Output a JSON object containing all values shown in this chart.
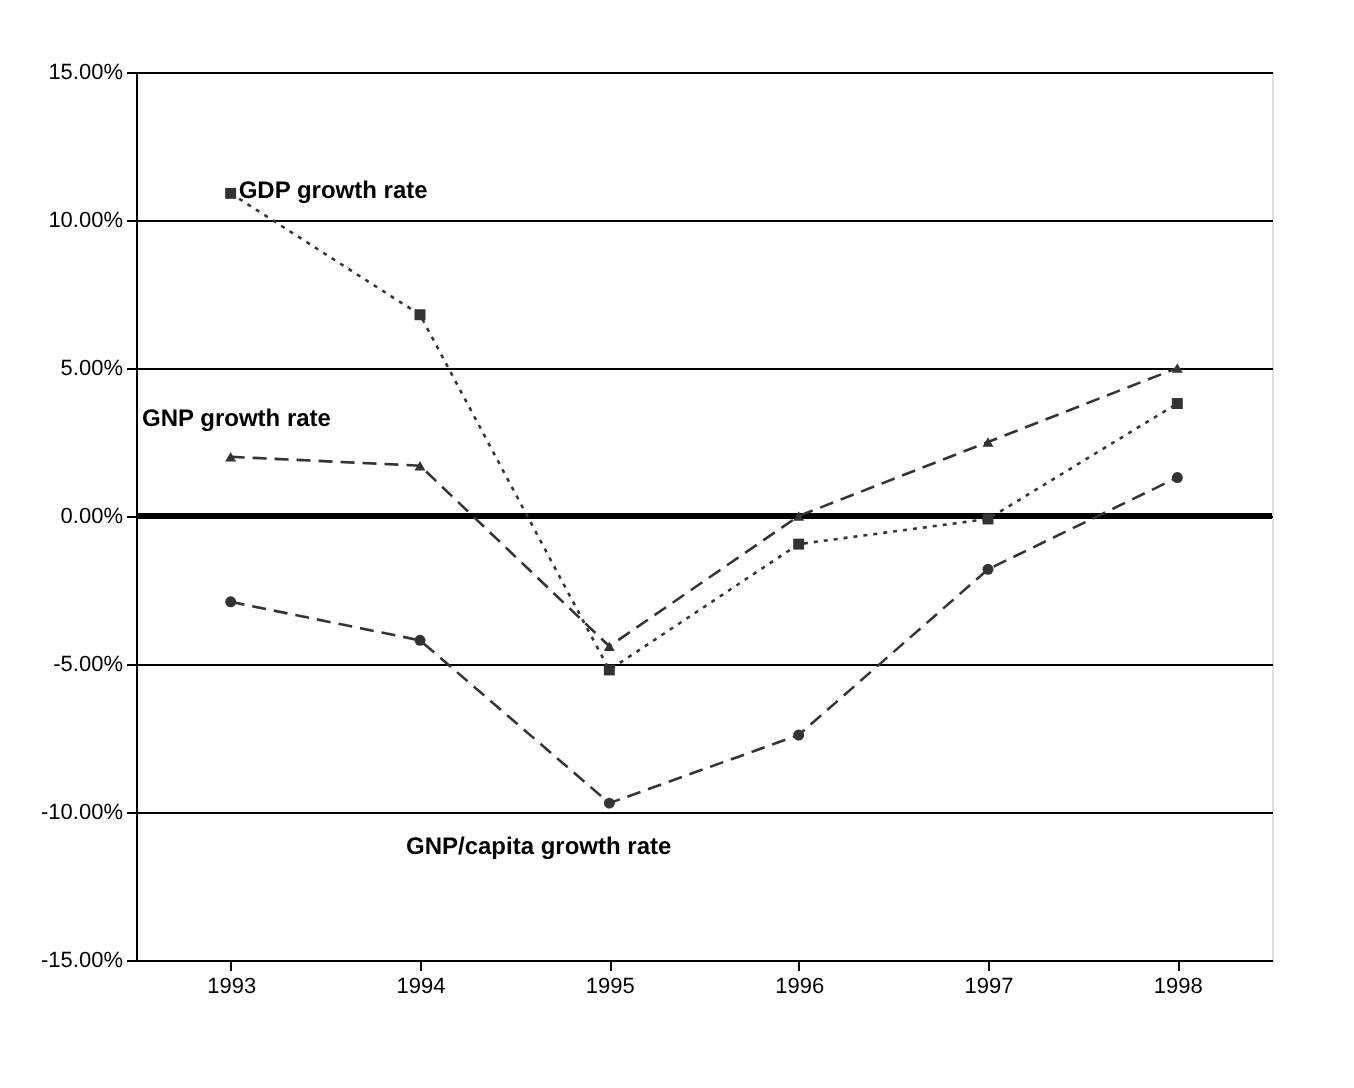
{
  "chart_data": {
    "type": "line",
    "categories": [
      "1993",
      "1994",
      "1995",
      "1996",
      "1997",
      "1998"
    ],
    "series": [
      {
        "color": "#333333",
        "marker": "square",
        "line_style": "dotted",
        "values": [
          10.9,
          6.8,
          -5.2,
          -0.95,
          -0.1,
          3.8
        ]
      },
      {
        "color": "#333333",
        "marker": "triangle",
        "line_style": "dashed",
        "values": [
          2.0,
          1.7,
          -4.4,
          0.0,
          2.5,
          5.0
        ]
      },
      {
        "color": "#333333",
        "marker": "circle",
        "line_style": "dashed",
        "values": [
          -2.9,
          -4.2,
          -9.7,
          -7.4,
          -1.8,
          1.3
        ]
      }
    ],
    "ylim": [
      -15,
      15
    ],
    "yticks": [
      {
        "value": -15,
        "label": "-15.00%"
      },
      {
        "value": -10,
        "label": "-10.00%"
      },
      {
        "value": -5,
        "label": "-5.00%"
      },
      {
        "value": 0,
        "label": "0.00%"
      },
      {
        "value": 5,
        "label": "5.00%"
      },
      {
        "value": 10,
        "label": "10.00%"
      },
      {
        "value": 15,
        "label": "15.00%"
      }
    ],
    "grid": "y",
    "ref_lines": [
      {
        "axis": "y",
        "value": 0,
        "color": "#000000"
      }
    ],
    "annotations": [
      {
        "text": "GDP growth rate",
        "x": "1993",
        "y": 11.0
      },
      "GNP growth rate",
      "GNP/capita growth rate"
    ]
  }
}
